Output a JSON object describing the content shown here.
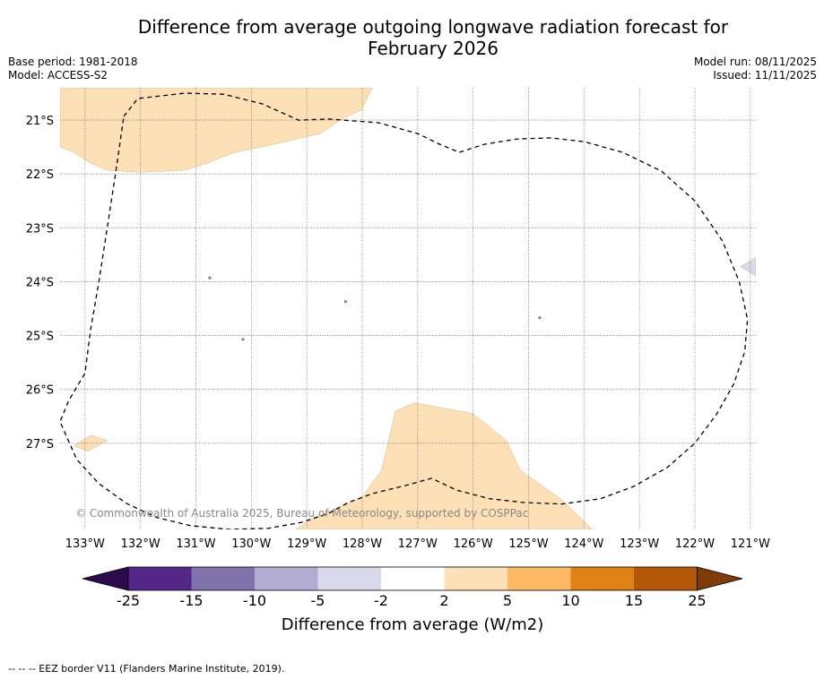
{
  "title_line1": "Difference from average outgoing longwave radiation forecast for",
  "title_line2": "February 2026",
  "base_period": "Base period: 1981-2018",
  "model": "Model: ACCESS-S2",
  "model_run": "Model run: 08/11/2025",
  "issued": "Issued: 11/11/2025",
  "copyright": "© Commonwealth of Australia 2025, Bureau of Meteorology, supported by COSPPac",
  "footer": "--  --  -- EEZ border V11 (Flanders Marine Institute, 2019).",
  "colors": {
    "c_neg25": "#2d0a4e",
    "c_neg15": "#542788",
    "c_neg10": "#8073ac",
    "c_neg5": "#b2abd2",
    "c_neg2": "#d8daeb",
    "c_0": "#ffffff",
    "c_2": "#fee0b6",
    "c_5": "#fdb863",
    "c_10": "#e08214",
    "c_15": "#b35806",
    "c_25": "#7f3b08",
    "grid": "#777777",
    "eez": "#000000"
  },
  "chart_data": {
    "type": "heatmap",
    "title": "Difference from average outgoing longwave radiation forecast for February 2026",
    "xlabel": "",
    "ylabel": "",
    "xlim": [
      -133.45,
      -120.9
    ],
    "ylim": [
      -28.6,
      -20.4
    ],
    "x_ticks": [
      -133,
      -132,
      -131,
      -130,
      -129,
      -128,
      -127,
      -126,
      -125,
      -124,
      -123,
      -122,
      -121
    ],
    "x_tick_labels": [
      "133°W",
      "132°W",
      "131°W",
      "130°W",
      "129°W",
      "128°W",
      "127°W",
      "126°W",
      "125°W",
      "124°W",
      "123°W",
      "122°W",
      "121°W"
    ],
    "y_ticks": [
      -21,
      -22,
      -23,
      -24,
      -25,
      -26,
      -27
    ],
    "y_tick_labels": [
      "21°S",
      "22°S",
      "23°S",
      "24°S",
      "25°S",
      "26°S",
      "27°S"
    ],
    "regions": [
      {
        "name": "positive-anomaly-north",
        "category": "2 to 5",
        "lonlat": [
          [
            -133.45,
            -21.5
          ],
          [
            -133.2,
            -21.6
          ],
          [
            -132.9,
            -21.8
          ],
          [
            -132.6,
            -21.93
          ],
          [
            -132.0,
            -21.97
          ],
          [
            -131.2,
            -21.93
          ],
          [
            -130.8,
            -21.8
          ],
          [
            -130.3,
            -21.6
          ],
          [
            -129.6,
            -21.45
          ],
          [
            -128.75,
            -21.25
          ],
          [
            -128.4,
            -21.0
          ],
          [
            -128.0,
            -20.8
          ],
          [
            -127.85,
            -20.45
          ],
          [
            -127.8,
            -20.4
          ],
          [
            -133.45,
            -20.4
          ]
        ]
      },
      {
        "name": "positive-anomaly-south",
        "category": "2 to 5",
        "lonlat": [
          [
            -129.2,
            -28.6
          ],
          [
            -128.9,
            -28.4
          ],
          [
            -128.0,
            -28.0
          ],
          [
            -127.65,
            -27.5
          ],
          [
            -127.4,
            -26.4
          ],
          [
            -127.05,
            -26.25
          ],
          [
            -126.0,
            -26.45
          ],
          [
            -125.4,
            -26.95
          ],
          [
            -125.15,
            -27.5
          ],
          [
            -124.4,
            -28.05
          ],
          [
            -123.85,
            -28.6
          ]
        ]
      },
      {
        "name": "positive-anomaly-west-islet",
        "category": "2 to 5",
        "lonlat": [
          [
            -133.2,
            -27.05
          ],
          [
            -132.9,
            -26.85
          ],
          [
            -132.6,
            -26.95
          ],
          [
            -132.95,
            -27.15
          ]
        ]
      },
      {
        "name": "negative-anomaly-east",
        "category": "-5 to -2",
        "lonlat": [
          [
            -121.18,
            -23.72
          ],
          [
            -120.9,
            -23.55
          ],
          [
            -120.9,
            -23.9
          ]
        ]
      }
    ],
    "eez_border": [
      [
        -132.3,
        -20.93
      ],
      [
        -132.05,
        -20.6
      ],
      [
        -131.2,
        -20.5
      ],
      [
        -130.5,
        -20.52
      ],
      [
        -129.8,
        -20.7
      ],
      [
        -129.15,
        -21.0
      ],
      [
        -128.6,
        -20.98
      ],
      [
        -127.7,
        -21.05
      ],
      [
        -127.0,
        -21.25
      ],
      [
        -126.6,
        -21.45
      ],
      [
        -126.25,
        -21.6
      ],
      [
        -125.8,
        -21.45
      ],
      [
        -125.2,
        -21.35
      ],
      [
        -124.6,
        -21.33
      ],
      [
        -124.0,
        -21.4
      ],
      [
        -123.3,
        -21.6
      ],
      [
        -122.6,
        -21.95
      ],
      [
        -122.0,
        -22.5
      ],
      [
        -121.5,
        -23.25
      ],
      [
        -121.2,
        -24.0
      ],
      [
        -121.05,
        -24.7
      ],
      [
        -121.1,
        -25.3
      ],
      [
        -121.3,
        -25.9
      ],
      [
        -121.6,
        -26.45
      ],
      [
        -122.0,
        -27.0
      ],
      [
        -122.5,
        -27.45
      ],
      [
        -123.1,
        -27.8
      ],
      [
        -123.7,
        -28.03
      ],
      [
        -124.4,
        -28.13
      ],
      [
        -125.1,
        -28.1
      ],
      [
        -125.7,
        -28.03
      ],
      [
        -126.3,
        -27.87
      ],
      [
        -126.75,
        -27.65
      ],
      [
        -127.2,
        -27.78
      ],
      [
        -127.8,
        -27.93
      ],
      [
        -128.25,
        -28.1
      ],
      [
        -128.6,
        -28.3
      ],
      [
        -129.1,
        -28.47
      ],
      [
        -129.7,
        -28.58
      ],
      [
        -130.4,
        -28.6
      ],
      [
        -131.1,
        -28.53
      ],
      [
        -131.7,
        -28.38
      ],
      [
        -132.25,
        -28.12
      ],
      [
        -132.75,
        -27.75
      ],
      [
        -133.15,
        -27.3
      ],
      [
        -133.45,
        -26.6
      ],
      [
        -133.3,
        -26.22
      ],
      [
        -133.0,
        -25.7
      ],
      [
        -132.9,
        -24.9
      ],
      [
        -132.75,
        -24.0
      ],
      [
        -132.6,
        -23.0
      ],
      [
        -132.45,
        -22.0
      ],
      [
        -132.3,
        -20.93
      ]
    ],
    "markers": [
      {
        "lon": -130.75,
        "lat": -23.93
      },
      {
        "lon": -128.3,
        "lat": -24.37
      },
      {
        "lon": -124.8,
        "lat": -24.67
      },
      {
        "lon": -130.15,
        "lat": -25.07
      }
    ],
    "colorbar": {
      "label": "Difference from average (W/m2)",
      "extend": "both",
      "boundaries": [
        -25,
        -15,
        -10,
        -5,
        -2,
        2,
        5,
        10,
        15,
        25
      ],
      "tick_labels": [
        "-25",
        "-15",
        "-10",
        "-5",
        "-2",
        "2",
        "5",
        "10",
        "15",
        "25"
      ],
      "colors": [
        "#542788",
        "#8073ac",
        "#b2abd2",
        "#d8daeb",
        "#ffffff",
        "#fee0b6",
        "#fdb863",
        "#e08214",
        "#b35806"
      ],
      "under_color": "#2d0a4e",
      "over_color": "#7f3b08"
    }
  }
}
